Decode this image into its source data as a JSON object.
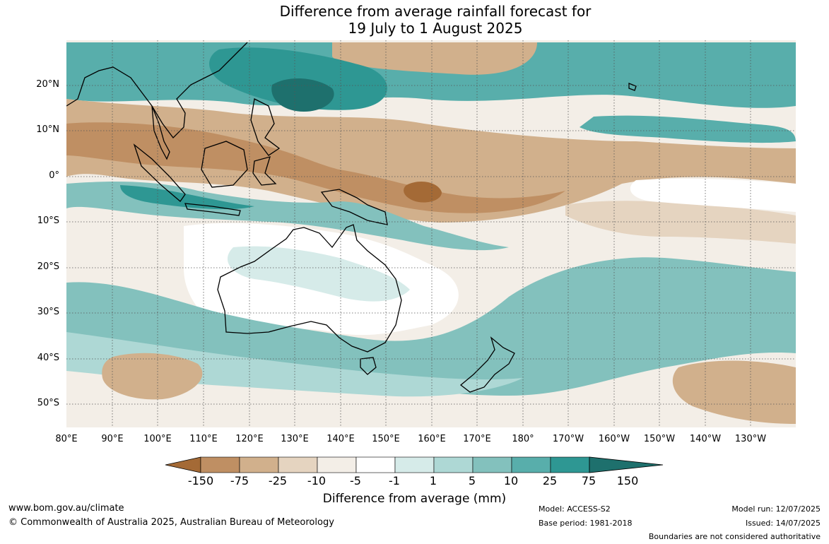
{
  "title_line1": "Difference from average rainfall forecast for",
  "title_line2": "19 July to 1 August 2025",
  "lat_labels": [
    "20°N",
    "10°N",
    "0°",
    "10°S",
    "20°S",
    "30°S",
    "40°S",
    "50°S"
  ],
  "lon_labels": [
    "80°E",
    "90°E",
    "100°E",
    "110°E",
    "120°E",
    "130°E",
    "140°E",
    "150°E",
    "160°E",
    "170°E",
    "180°",
    "170°W",
    "160°W",
    "150°W",
    "140°W",
    "130°W"
  ],
  "colorbar": {
    "ticks": [
      "-150",
      "-75",
      "-25",
      "-10",
      "-5",
      "-1",
      "1",
      "5",
      "10",
      "25",
      "75",
      "150"
    ],
    "colors": [
      "#a46a36",
      "#bf8f63",
      "#d1b08c",
      "#e5d4c0",
      "#f3eee7",
      "#ffffff",
      "#d6ebe9",
      "#aed8d5",
      "#83c1bd",
      "#58aeab",
      "#2e9793",
      "#1e706d"
    ],
    "title": "Difference from average (mm)"
  },
  "map_colors": {
    "frame": "#ffffff",
    "coast": "#000000",
    "grid": "#555555"
  },
  "footer": {
    "website": "www.bom.gov.au/climate",
    "copyright": "© Commonwealth of Australia 2025, Australian Bureau of Meteorology",
    "model": "Model: ACCESS-S2",
    "base_period": "Base period: 1981-2018",
    "model_run": "Model run: 12/07/2025",
    "issued": "Issued: 14/07/2025",
    "disclaimer": "Boundaries are not considered authoritative"
  }
}
